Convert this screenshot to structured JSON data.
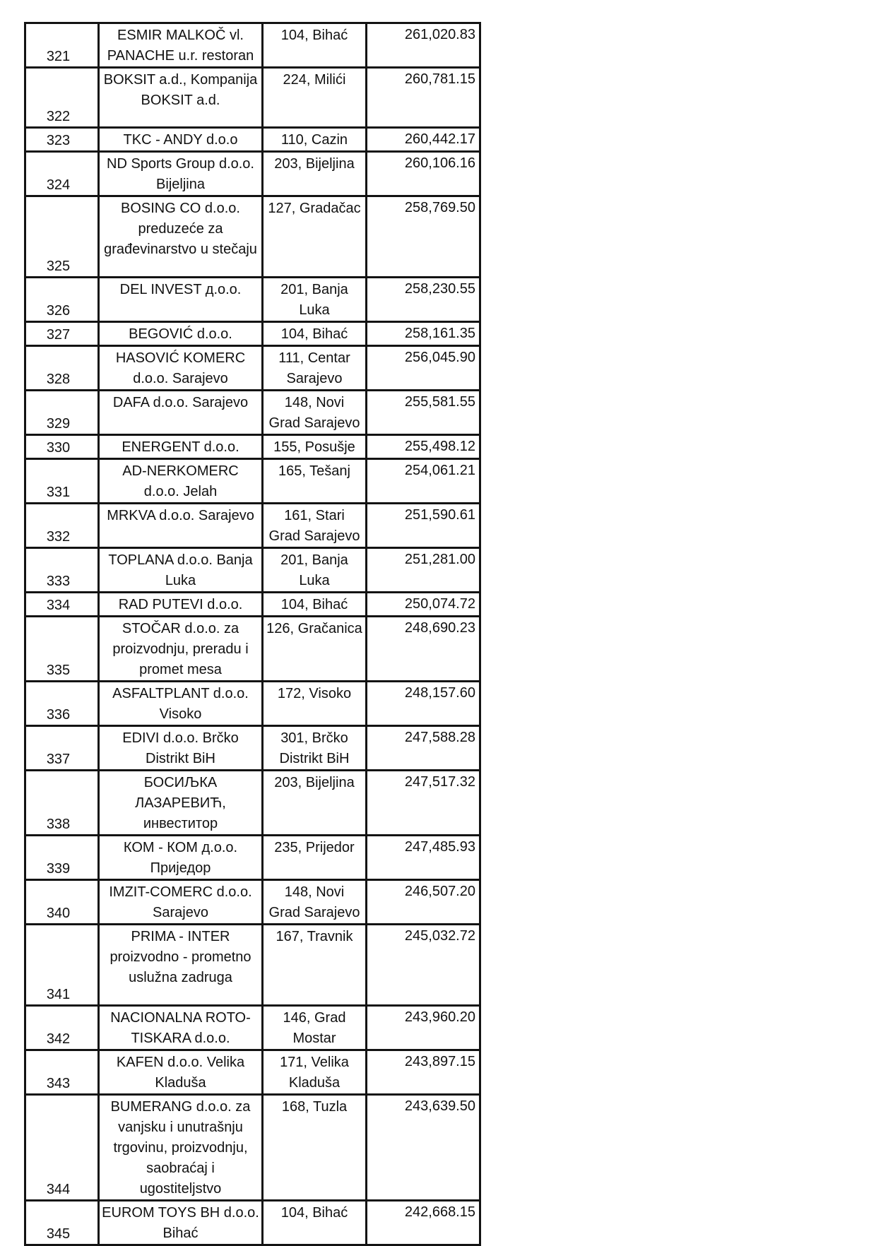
{
  "table": {
    "rows": [
      {
        "num": "321",
        "name": [
          "ESMIR MALKOČ vl.",
          "PANACHE u.r. restoran"
        ],
        "municipality": [
          "104, Bihać"
        ],
        "amount": "261,020.83"
      },
      {
        "num": "322",
        "name": [
          "BOKSIT a.d., Kompanija",
          "BOKSIT a.d."
        ],
        "municipality": [
          "224, Milići"
        ],
        "amount": "260,781.15"
      },
      {
        "num": "323",
        "name": [
          "TKC - ANDY   d.o.o"
        ],
        "municipality": [
          "110, Cazin"
        ],
        "amount": "260,442.17"
      },
      {
        "num": "324",
        "name": [
          "ND Sports Group d.o.o.",
          "Bijeljina"
        ],
        "municipality": [
          "203, Bijeljina"
        ],
        "amount": "260,106.16"
      },
      {
        "num": "325",
        "name": [
          "BOSING CO  d.o.o.",
          "preduzeće za",
          "građevinarstvo u stečaju"
        ],
        "municipality": [
          "127, Gradačac"
        ],
        "amount": "258,769.50"
      },
      {
        "num": "326",
        "name": [
          "DEL INVEST д.о.о."
        ],
        "municipality": [
          "201, Banja",
          "Luka"
        ],
        "amount": "258,230.55"
      },
      {
        "num": "327",
        "name": [
          "BEGOVIĆ  d.o.o."
        ],
        "municipality": [
          "104, Bihać"
        ],
        "amount": "258,161.35"
      },
      {
        "num": "328",
        "name": [
          "HASOVIĆ KOMERC",
          "d.o.o. Sarajevo"
        ],
        "municipality": [
          "111, Centar",
          "Sarajevo"
        ],
        "amount": "256,045.90"
      },
      {
        "num": "329",
        "name": [
          "DAFA d.o.o. Sarajevo"
        ],
        "municipality": [
          "148, Novi",
          "Grad Sarajevo"
        ],
        "amount": "255,581.55"
      },
      {
        "num": "330",
        "name": [
          "ENERGENT d.o.o."
        ],
        "municipality": [
          "155, Posušje"
        ],
        "amount": "255,498.12"
      },
      {
        "num": "331",
        "name": [
          "AD-NERKOMERC",
          "d.o.o. Jelah"
        ],
        "municipality": [
          "165, Tešanj"
        ],
        "amount": "254,061.21"
      },
      {
        "num": "332",
        "name": [
          "MRKVA d.o.o. Sarajevo"
        ],
        "municipality": [
          "161, Stari",
          "Grad Sarajevo"
        ],
        "amount": "251,590.61"
      },
      {
        "num": "333",
        "name": [
          "TOPLANA d.o.o. Banja",
          "Luka"
        ],
        "municipality": [
          "201, Banja",
          "Luka"
        ],
        "amount": "251,281.00"
      },
      {
        "num": "334",
        "name": [
          "RAD PUTEVI d.o.o."
        ],
        "municipality": [
          "104, Bihać"
        ],
        "amount": "250,074.72"
      },
      {
        "num": "335",
        "name": [
          "STOČAR d.o.o. za",
          "proizvodnju, preradu i",
          "promet mesa"
        ],
        "municipality": [
          "126, Gračanica"
        ],
        "amount": "248,690.23"
      },
      {
        "num": "336",
        "name": [
          "ASFALTPLANT d.o.o.",
          "Visoko"
        ],
        "municipality": [
          "172, Visoko"
        ],
        "amount": "248,157.60"
      },
      {
        "num": "337",
        "name": [
          "EDIVI d.o.o. Brčko",
          "Distrikt BiH"
        ],
        "municipality": [
          "301, Brčko",
          "Distrikt BiH"
        ],
        "amount": "247,588.28"
      },
      {
        "num": "338",
        "name": [
          "БОСИЉКА",
          "ЛАЗАРЕВИЋ,",
          "инвеститор"
        ],
        "municipality": [
          "203, Bijeljina"
        ],
        "amount": "247,517.32"
      },
      {
        "num": "339",
        "name": [
          "КОМ - КОМ  д.о.о.",
          "Приједор"
        ],
        "municipality": [
          "235, Prijedor"
        ],
        "amount": "247,485.93"
      },
      {
        "num": "340",
        "name": [
          "IMZIT-COMERC d.o.o.",
          "Sarajevo"
        ],
        "municipality": [
          "148, Novi",
          "Grad Sarajevo"
        ],
        "amount": "246,507.20"
      },
      {
        "num": "341",
        "name": [
          "PRIMA - INTER",
          "proizvodno - prometno",
          "uslužna zadruga"
        ],
        "municipality": [
          "167, Travnik"
        ],
        "amount": "245,032.72"
      },
      {
        "num": "342",
        "name": [
          "NACIONALNA ROTO-",
          "TISKARA d.o.o."
        ],
        "municipality": [
          "146, Grad",
          "Mostar"
        ],
        "amount": "243,960.20"
      },
      {
        "num": "343",
        "name": [
          "KAFEN d.o.o. Velika",
          "Kladuša"
        ],
        "municipality": [
          "171, Velika",
          "Kladuša"
        ],
        "amount": "243,897.15"
      },
      {
        "num": "344",
        "name": [
          "BUMERANG d.o.o. za",
          "vanjsku i unutrašnju",
          "trgovinu, proizvodnju,",
          "saobraćaj i",
          "ugostiteljstvo"
        ],
        "municipality": [
          "168, Tuzla"
        ],
        "amount": "243,639.50"
      },
      {
        "num": "345",
        "name": [
          "EUROM TOYS BH d.o.o.",
          "Bihać"
        ],
        "municipality": [
          "104, Bihać"
        ],
        "amount": "242,668.15"
      }
    ]
  }
}
